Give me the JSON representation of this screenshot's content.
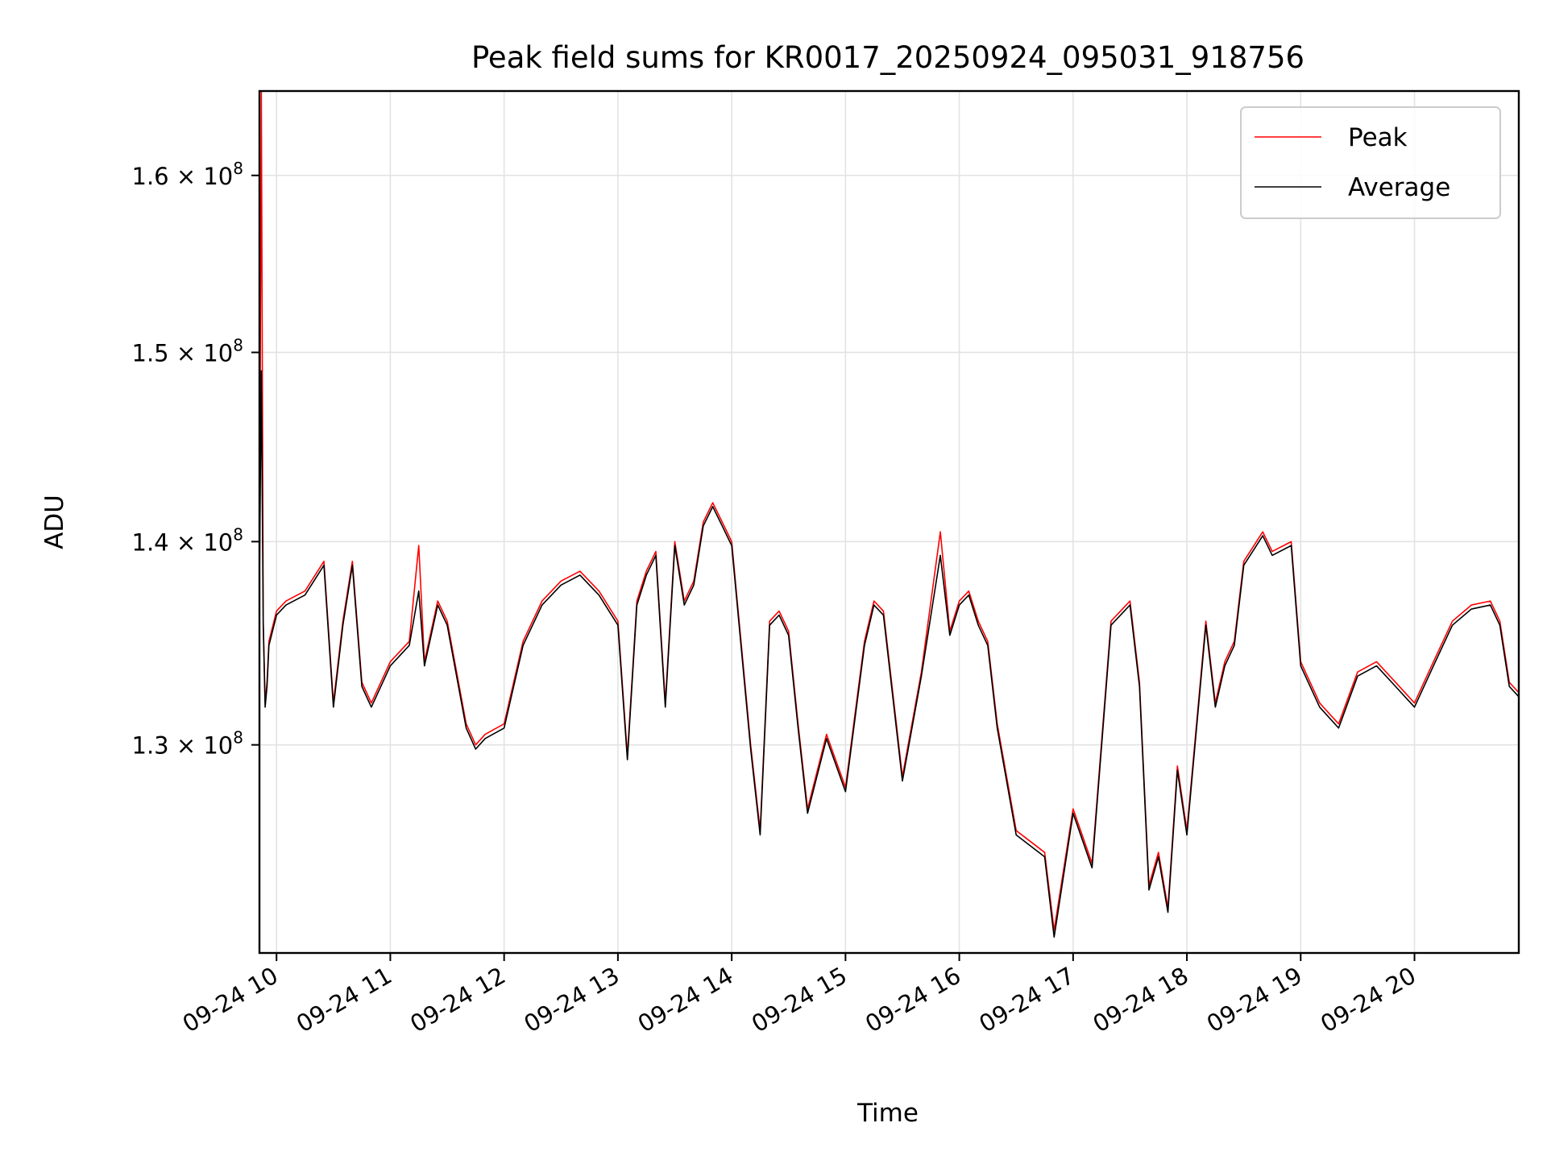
{
  "chart_data": {
    "type": "line",
    "title": "Peak field sums for KR0017_20250924_095031_918756",
    "xlabel": "Time",
    "ylabel": "ADU",
    "y_scale": "log",
    "grid": true,
    "legend_position": "top-right",
    "x_range": [
      "2025-09-24 09:51",
      "2025-09-24 20:55"
    ],
    "ylim": [
      120500000,
      165000000
    ],
    "x_ticks": [
      "09-24 10",
      "09-24 11",
      "09-24 12",
      "09-24 13",
      "09-24 14",
      "09-24 15",
      "09-24 16",
      "09-24 17",
      "09-24 18",
      "09-24 19",
      "09-24 20"
    ],
    "y_ticks": [
      {
        "value": 130000000,
        "mantissa": "1.3",
        "base": "10",
        "exponent": "8"
      },
      {
        "value": 140000000,
        "mantissa": "1.4",
        "base": "10",
        "exponent": "8"
      },
      {
        "value": 150000000,
        "mantissa": "1.5",
        "base": "10",
        "exponent": "8"
      },
      {
        "value": 160000000,
        "mantissa": "1.6",
        "base": "10",
        "exponent": "8"
      }
    ],
    "series": [
      {
        "name": "Peak",
        "color": "#ff0000",
        "x": [
          "09:51",
          "09:52",
          "09:53",
          "09:54",
          "09:55",
          "09:56",
          "10:00",
          "10:05",
          "10:15",
          "10:25",
          "10:30",
          "10:35",
          "10:40",
          "10:45",
          "10:50",
          "11:00",
          "11:10",
          "11:15",
          "11:18",
          "11:25",
          "11:30",
          "11:40",
          "11:45",
          "11:50",
          "12:00",
          "12:10",
          "12:20",
          "12:30",
          "12:40",
          "12:50",
          "13:00",
          "13:05",
          "13:10",
          "13:15",
          "13:20",
          "13:25",
          "13:30",
          "13:35",
          "13:40",
          "13:45",
          "13:50",
          "13:55",
          "14:00",
          "14:10",
          "14:15",
          "14:20",
          "14:25",
          "14:30",
          "14:35",
          "14:40",
          "14:50",
          "15:00",
          "15:10",
          "15:15",
          "15:20",
          "15:30",
          "15:40",
          "15:50",
          "15:55",
          "16:00",
          "16:05",
          "16:10",
          "16:15",
          "16:20",
          "16:30",
          "16:45",
          "16:50",
          "17:00",
          "17:10",
          "17:20",
          "17:30",
          "17:35",
          "17:40",
          "17:45",
          "17:50",
          "17:55",
          "18:00",
          "18:10",
          "18:15",
          "18:20",
          "18:25",
          "18:30",
          "18:40",
          "18:45",
          "18:55",
          "19:00",
          "19:10",
          "19:20",
          "19:30",
          "19:40",
          "19:50",
          "20:00",
          "20:10",
          "20:20",
          "20:30",
          "20:40",
          "20:45",
          "20:50",
          "20:55"
        ],
        "values": [
          138000000,
          165000000,
          136000000,
          132000000,
          133000000,
          135000000,
          136500000,
          137000000,
          137500000,
          139000000,
          132000000,
          136000000,
          139000000,
          133000000,
          132000000,
          134000000,
          135000000,
          139800000,
          134000000,
          137000000,
          136000000,
          131000000,
          130000000,
          130500000,
          131000000,
          135000000,
          137000000,
          138000000,
          138500000,
          137500000,
          136000000,
          129500000,
          137000000,
          138500000,
          139500000,
          132000000,
          140000000,
          137000000,
          138000000,
          141000000,
          142000000,
          141000000,
          140000000,
          130000000,
          126000000,
          136000000,
          136500000,
          135500000,
          131000000,
          127000000,
          130500000,
          128000000,
          135000000,
          137000000,
          136500000,
          128500000,
          133500000,
          140500000,
          135500000,
          137000000,
          137500000,
          136000000,
          135000000,
          131000000,
          126000000,
          125000000,
          121500000,
          127000000,
          124500000,
          136000000,
          137000000,
          133000000,
          123500000,
          125000000,
          122500000,
          129000000,
          126000000,
          136000000,
          132000000,
          134000000,
          135000000,
          139000000,
          140500000,
          139500000,
          140000000,
          134000000,
          132000000,
          131000000,
          133500000,
          134000000,
          133000000,
          132000000,
          134000000,
          136000000,
          136800000,
          137000000,
          136000000,
          133000000,
          132500000
        ]
      },
      {
        "name": "Average",
        "color": "#000000",
        "x": [
          "09:51",
          "09:52",
          "09:53",
          "09:54",
          "09:55",
          "09:56",
          "10:00",
          "10:05",
          "10:15",
          "10:25",
          "10:30",
          "10:35",
          "10:40",
          "10:45",
          "10:50",
          "11:00",
          "11:10",
          "11:15",
          "11:18",
          "11:25",
          "11:30",
          "11:40",
          "11:45",
          "11:50",
          "12:00",
          "12:10",
          "12:20",
          "12:30",
          "12:40",
          "12:50",
          "13:00",
          "13:05",
          "13:10",
          "13:15",
          "13:20",
          "13:25",
          "13:30",
          "13:35",
          "13:40",
          "13:45",
          "13:50",
          "13:55",
          "14:00",
          "14:10",
          "14:15",
          "14:20",
          "14:25",
          "14:30",
          "14:35",
          "14:40",
          "14:50",
          "15:00",
          "15:10",
          "15:15",
          "15:20",
          "15:30",
          "15:40",
          "15:50",
          "15:55",
          "16:00",
          "16:05",
          "16:10",
          "16:15",
          "16:20",
          "16:30",
          "16:45",
          "16:50",
          "17:00",
          "17:10",
          "17:20",
          "17:30",
          "17:35",
          "17:40",
          "17:45",
          "17:50",
          "17:55",
          "18:00",
          "18:10",
          "18:15",
          "18:20",
          "18:25",
          "18:30",
          "18:40",
          "18:45",
          "18:55",
          "19:00",
          "19:10",
          "19:20",
          "19:30",
          "19:40",
          "19:50",
          "20:00",
          "20:10",
          "20:20",
          "20:30",
          "20:40",
          "20:45",
          "20:50",
          "20:55"
        ],
        "values": [
          137800000,
          149000000,
          135800000,
          131800000,
          132800000,
          134800000,
          136300000,
          136800000,
          137300000,
          138800000,
          131800000,
          135800000,
          138800000,
          132800000,
          131800000,
          133800000,
          134800000,
          137500000,
          133800000,
          136800000,
          135800000,
          130800000,
          129800000,
          130300000,
          130800000,
          134800000,
          136800000,
          137800000,
          138300000,
          137300000,
          135800000,
          129300000,
          136800000,
          138300000,
          139300000,
          131800000,
          139800000,
          136800000,
          137800000,
          140800000,
          141800000,
          140800000,
          139800000,
          129800000,
          125800000,
          135800000,
          136300000,
          135300000,
          130800000,
          126800000,
          130300000,
          127800000,
          134800000,
          136800000,
          136300000,
          128300000,
          133300000,
          139300000,
          135300000,
          136800000,
          137300000,
          135800000,
          134800000,
          130800000,
          125800000,
          124800000,
          121200000,
          126800000,
          124300000,
          135800000,
          136800000,
          132800000,
          123300000,
          124800000,
          122300000,
          128800000,
          125800000,
          135800000,
          131800000,
          133800000,
          134800000,
          138800000,
          140300000,
          139300000,
          139800000,
          133800000,
          131800000,
          130800000,
          133300000,
          133800000,
          132800000,
          131800000,
          133800000,
          135800000,
          136600000,
          136800000,
          135800000,
          132800000,
          132300000
        ]
      }
    ]
  }
}
